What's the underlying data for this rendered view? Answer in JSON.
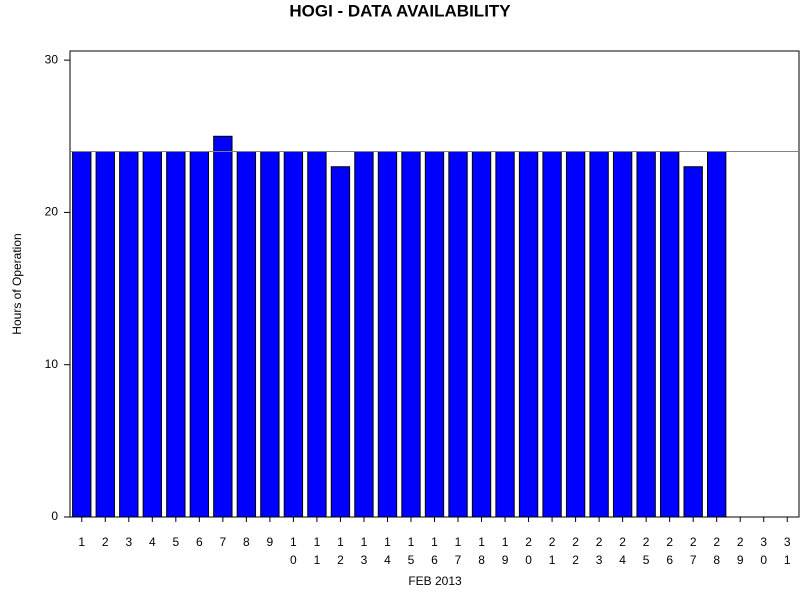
{
  "chart_data": {
    "type": "bar",
    "title": "HOGI - DATA AVAILABILITY",
    "x_label": "FEB 2013",
    "y_label": "Hours of Operation",
    "categories": [
      "1",
      "2",
      "3",
      "4",
      "5",
      "6",
      "7",
      "8",
      "9",
      "10",
      "11",
      "12",
      "13",
      "14",
      "15",
      "16",
      "17",
      "18",
      "19",
      "20",
      "21",
      "22",
      "23",
      "24",
      "25",
      "26",
      "27",
      "28",
      "29",
      "30",
      "31"
    ],
    "values": [
      24,
      24,
      24,
      24,
      24,
      24,
      25,
      24,
      24,
      24,
      24,
      23,
      24,
      24,
      24,
      24,
      24,
      24,
      24,
      24,
      24,
      24,
      24,
      24,
      24,
      24,
      23,
      24,
      null,
      null,
      null
    ],
    "color": "#0000ff",
    "reference_line": 24,
    "ylim": [
      0,
      30.6
    ],
    "yticks": [
      0,
      10,
      20,
      30
    ],
    "grid": false
  }
}
